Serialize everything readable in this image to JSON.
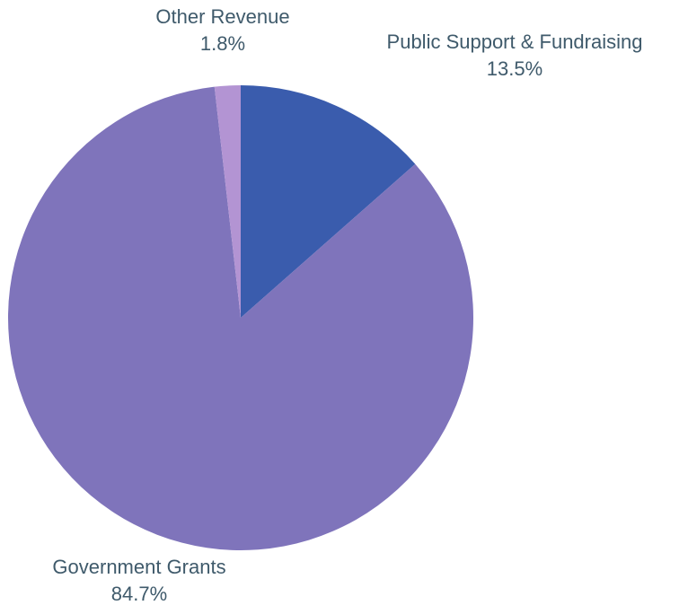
{
  "chart_data": {
    "type": "pie",
    "title": "",
    "start_angle_deg": 0,
    "direction": "clockwise",
    "slices": [
      {
        "label": "Public Support & Fundraising",
        "value": 13.5,
        "percent_label": "13.5%",
        "color": "#3a5cad"
      },
      {
        "label": "Government Grants",
        "value": 84.7,
        "percent_label": "84.7%",
        "color": "#7f74bb"
      },
      {
        "label": "Other Revenue",
        "value": 1.8,
        "percent_label": "1.8%",
        "color": "#b394d3"
      }
    ]
  }
}
